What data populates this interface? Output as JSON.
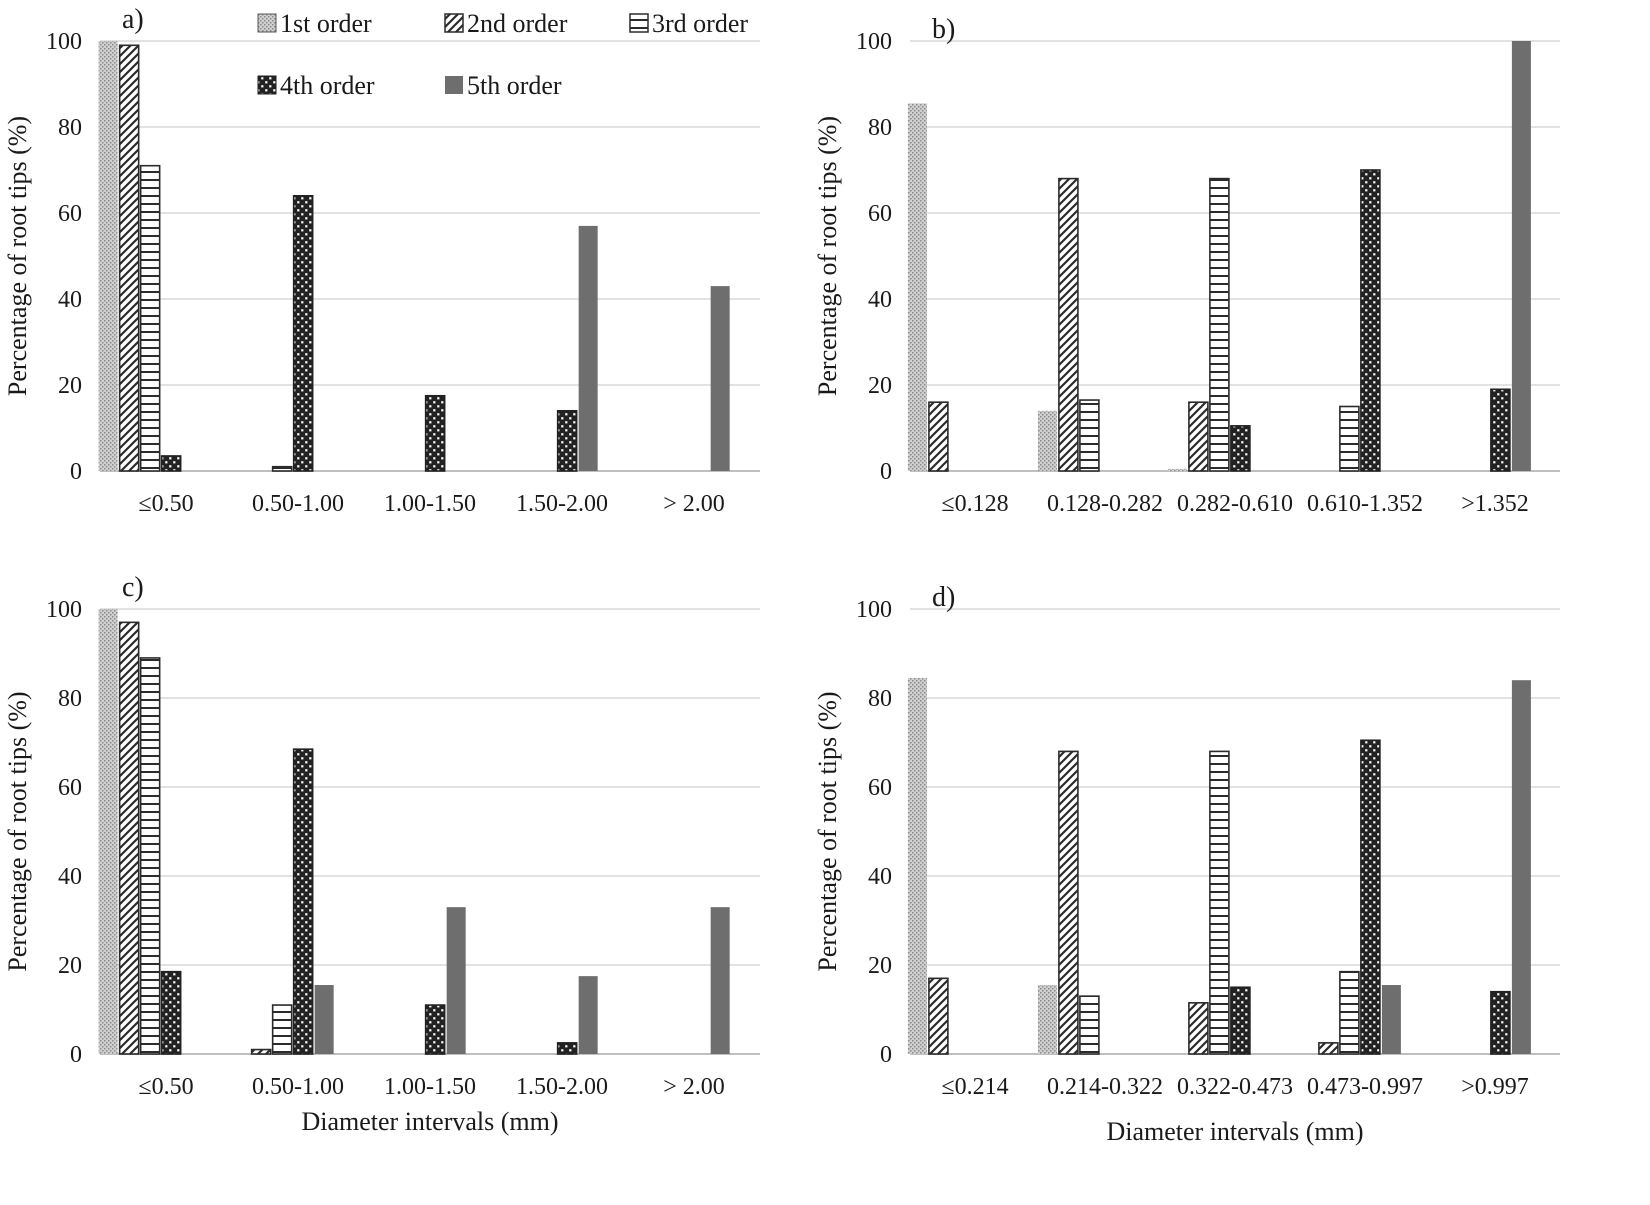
{
  "colors": {
    "s1_light": "#d0d0d0",
    "s1_dot": "#8a8a8a",
    "pattern_dark": "#2b2b2b",
    "s4_bg": "#222222",
    "s5": "#6e6e6e",
    "grid": "#d9d9d9",
    "axis": "#bfbfbf"
  },
  "legend": {
    "s1": "1st order",
    "s2": "2nd order",
    "s3": "3rd order",
    "s4": "4th order",
    "s5": "5th order"
  },
  "chart_data": [
    {
      "id": "a",
      "type": "bar",
      "panel_label": "a)",
      "ylabel": "Percentage of root tips (%)",
      "xlabel": "",
      "ylim": [
        0,
        100
      ],
      "yticks": [
        "0",
        "20",
        "40",
        "60",
        "80",
        "100"
      ],
      "categories": [
        "≤0.50",
        "0.50-1.00",
        "1.00-1.50",
        "1.50-2.00",
        "> 2.00"
      ],
      "series": [
        {
          "name": "1st order",
          "values": [
            100,
            0,
            0,
            0,
            0
          ]
        },
        {
          "name": "2nd order",
          "values": [
            99,
            0,
            0,
            0,
            0
          ]
        },
        {
          "name": "3rd order",
          "values": [
            71,
            1,
            0,
            0,
            0
          ]
        },
        {
          "name": "4th order",
          "values": [
            3.5,
            64,
            17.5,
            14,
            0
          ]
        },
        {
          "name": "5th order",
          "values": [
            0,
            0,
            0,
            57,
            43
          ]
        }
      ]
    },
    {
      "id": "b",
      "type": "bar",
      "panel_label": "b)",
      "ylabel": "Percentage of root tips (%)",
      "xlabel": "",
      "ylim": [
        0,
        100
      ],
      "yticks": [
        "0",
        "20",
        "40",
        "60",
        "80",
        "100"
      ],
      "categories": [
        "≤0.128",
        "0.128-0.282",
        "0.282-0.610",
        "0.610-1.352",
        ">1.352"
      ],
      "series": [
        {
          "name": "1st order",
          "values": [
            85.5,
            14,
            0.5,
            0,
            0
          ]
        },
        {
          "name": "2nd order",
          "values": [
            16,
            68,
            16,
            0,
            0
          ]
        },
        {
          "name": "3rd order",
          "values": [
            0,
            16.5,
            68,
            15,
            0
          ]
        },
        {
          "name": "4th order",
          "values": [
            0,
            0,
            10.5,
            70,
            19
          ]
        },
        {
          "name": "5th order",
          "values": [
            0,
            0,
            0,
            0,
            100
          ]
        }
      ]
    },
    {
      "id": "c",
      "type": "bar",
      "panel_label": "c)",
      "ylabel": "Percentage of root tips (%)",
      "xlabel": "Diameter intervals (mm)",
      "ylim": [
        0,
        100
      ],
      "yticks": [
        "0",
        "20",
        "40",
        "60",
        "80",
        "100"
      ],
      "categories": [
        "≤0.50",
        "0.50-1.00",
        "1.00-1.50",
        "1.50-2.00",
        "> 2.00"
      ],
      "series": [
        {
          "name": "1st order",
          "values": [
            100,
            0,
            0,
            0,
            0
          ]
        },
        {
          "name": "2nd order",
          "values": [
            97,
            1,
            0,
            0,
            0
          ]
        },
        {
          "name": "3rd order",
          "values": [
            89,
            11,
            0,
            0,
            0
          ]
        },
        {
          "name": "4th order",
          "values": [
            18.5,
            68.5,
            11,
            2.5,
            0
          ]
        },
        {
          "name": "5th order",
          "values": [
            0,
            15.5,
            33,
            17.5,
            33
          ]
        }
      ]
    },
    {
      "id": "d",
      "type": "bar",
      "panel_label": "d)",
      "ylabel": "Percentage of root tips (%)",
      "xlabel": "Diameter intervals  (mm)",
      "ylim": [
        0,
        100
      ],
      "yticks": [
        "0",
        "20",
        "40",
        "60",
        "80",
        "100"
      ],
      "categories": [
        "≤0.214",
        "0.214-0.322",
        "0.322-0.473",
        "0.473-0.997",
        ">0.997"
      ],
      "series": [
        {
          "name": "1st order",
          "values": [
            84.5,
            15.5,
            0,
            0,
            0
          ]
        },
        {
          "name": "2nd order",
          "values": [
            17,
            68,
            11.5,
            2.5,
            0
          ]
        },
        {
          "name": "3rd order",
          "values": [
            0,
            13,
            68,
            18.5,
            0
          ]
        },
        {
          "name": "4th order",
          "values": [
            0,
            0,
            15,
            70.5,
            14
          ]
        },
        {
          "name": "5th order",
          "values": [
            0,
            0,
            0,
            15.5,
            84
          ]
        }
      ]
    }
  ]
}
